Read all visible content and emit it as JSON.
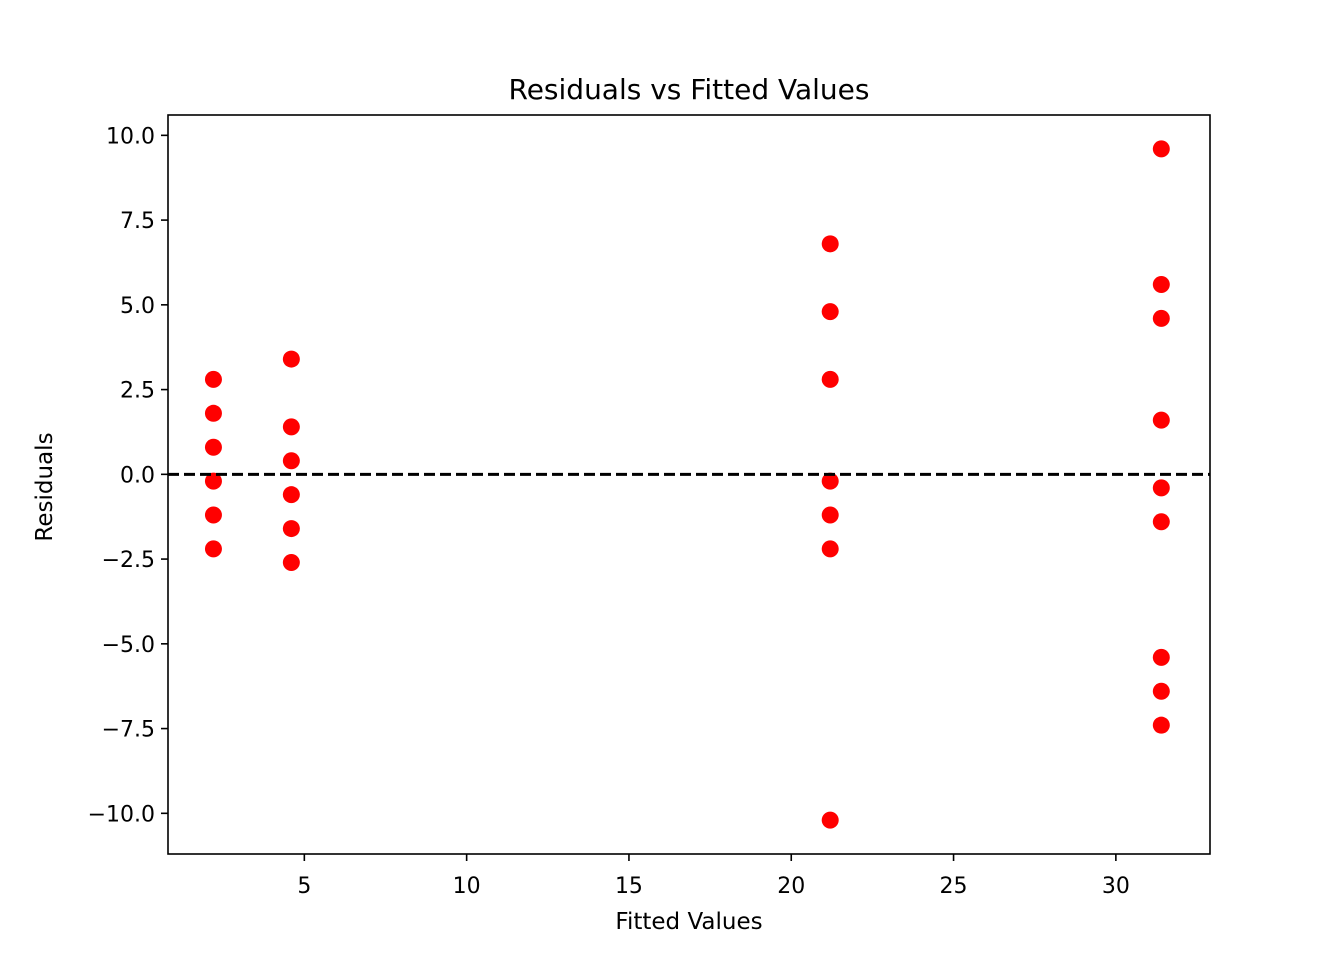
{
  "chart_data": {
    "type": "scatter",
    "title": "Residuals vs Fitted Values",
    "xlabel": "Fitted Values",
    "ylabel": "Residuals",
    "xlim": [
      0.8,
      32.9
    ],
    "ylim": [
      -11.2,
      10.6
    ],
    "xticks": [
      5,
      10,
      15,
      20,
      25,
      30
    ],
    "yticks": [
      10.0,
      7.5,
      5.0,
      2.5,
      0.0,
      -2.5,
      -5.0,
      -7.5,
      -10.0
    ],
    "xtick_labels": [
      "5",
      "10",
      "15",
      "20",
      "25",
      "30"
    ],
    "ytick_labels": [
      "10.0",
      "7.5",
      "5.0",
      "2.5",
      "0.0",
      "−2.5",
      "−5.0",
      "−7.5",
      "−10.0"
    ],
    "grid": false,
    "reference_line": {
      "y": 0,
      "style": "dashed",
      "color": "#000000"
    },
    "marker_color": "#ff0000",
    "series": [
      {
        "points": [
          {
            "x": 2.2,
            "y": 2.8
          },
          {
            "x": 2.2,
            "y": 1.8
          },
          {
            "x": 2.2,
            "y": 0.8
          },
          {
            "x": 2.2,
            "y": -0.2
          },
          {
            "x": 2.2,
            "y": -1.2
          },
          {
            "x": 2.2,
            "y": -2.2
          },
          {
            "x": 4.6,
            "y": 3.4
          },
          {
            "x": 4.6,
            "y": 1.4
          },
          {
            "x": 4.6,
            "y": 0.4
          },
          {
            "x": 4.6,
            "y": -0.6
          },
          {
            "x": 4.6,
            "y": -1.6
          },
          {
            "x": 4.6,
            "y": -2.6
          },
          {
            "x": 21.2,
            "y": 6.8
          },
          {
            "x": 21.2,
            "y": 4.8
          },
          {
            "x": 21.2,
            "y": 2.8
          },
          {
            "x": 21.2,
            "y": -0.2
          },
          {
            "x": 21.2,
            "y": -1.2
          },
          {
            "x": 21.2,
            "y": -2.2
          },
          {
            "x": 21.2,
            "y": -10.2
          },
          {
            "x": 31.4,
            "y": 9.6
          },
          {
            "x": 31.4,
            "y": 5.6
          },
          {
            "x": 31.4,
            "y": 4.6
          },
          {
            "x": 31.4,
            "y": 1.6
          },
          {
            "x": 31.4,
            "y": -0.4
          },
          {
            "x": 31.4,
            "y": -1.4
          },
          {
            "x": 31.4,
            "y": -5.4
          },
          {
            "x": 31.4,
            "y": -6.4
          },
          {
            "x": 31.4,
            "y": -7.4
          }
        ]
      }
    ]
  }
}
